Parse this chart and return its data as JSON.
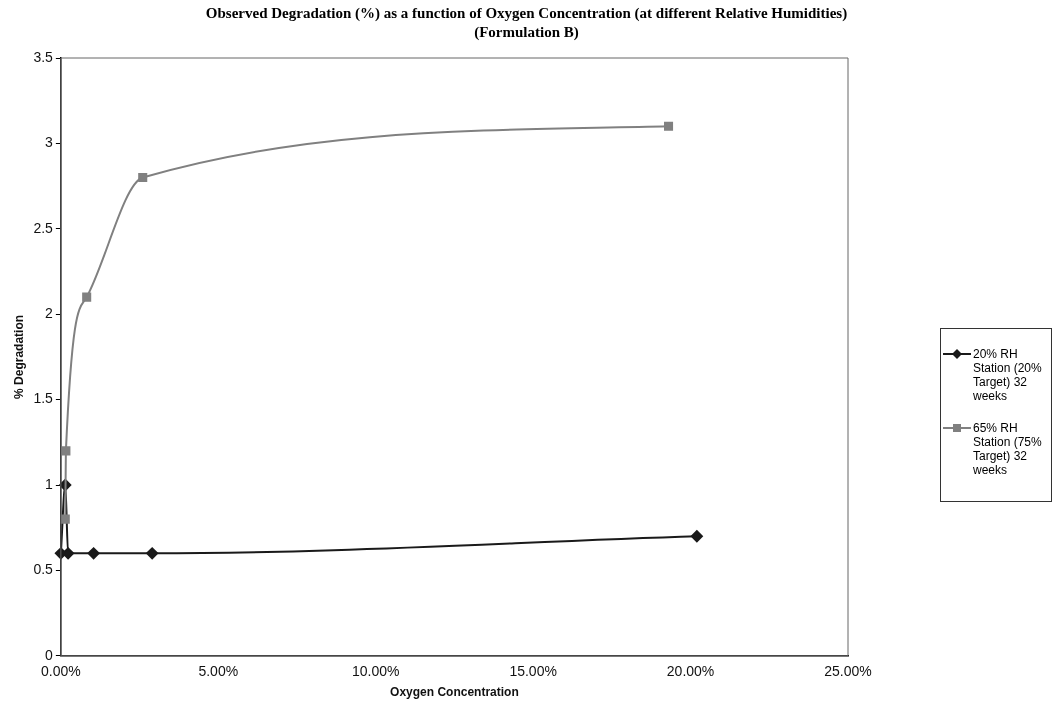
{
  "chart_data": {
    "type": "line",
    "title": "Observed Degradation (%) as a function of Oxygen Concentration (at different Relative Humidities)",
    "subtitle": "(Formulation B)",
    "xlabel": "Oxygen Concentration",
    "ylabel": "% Degradation",
    "series": [
      {
        "name": "20% RH Station (20% Target) 32 weeks",
        "color": "#1a1a1a",
        "marker": "diamond",
        "x": [
          0,
          0.14,
          0.23,
          1.04,
          2.9,
          20.2
        ],
        "values": [
          0.6,
          1.0,
          0.6,
          0.6,
          0.6,
          0.7
        ]
      },
      {
        "name": "65% RH Station (75% Target) 32 weeks",
        "color": "#808080",
        "marker": "square",
        "x": [
          0.14,
          0.16,
          0.82,
          2.6,
          19.3
        ],
        "values": [
          0.8,
          1.2,
          2.1,
          2.8,
          3.1
        ]
      }
    ],
    "xlim": [
      0,
      25
    ],
    "xticks": [
      {
        "value": 0,
        "label": "0.00%"
      },
      {
        "value": 5,
        "label": "5.00%"
      },
      {
        "value": 10,
        "label": "10.00%"
      },
      {
        "value": 15,
        "label": "15.00%"
      },
      {
        "value": 20,
        "label": "20.00%"
      },
      {
        "value": 25,
        "label": "25.00%"
      }
    ],
    "ylim": [
      0,
      3.5
    ],
    "yticks": [
      0,
      0.5,
      1,
      1.5,
      2,
      2.5,
      3,
      3.5
    ],
    "grid": false,
    "legend": "right"
  }
}
